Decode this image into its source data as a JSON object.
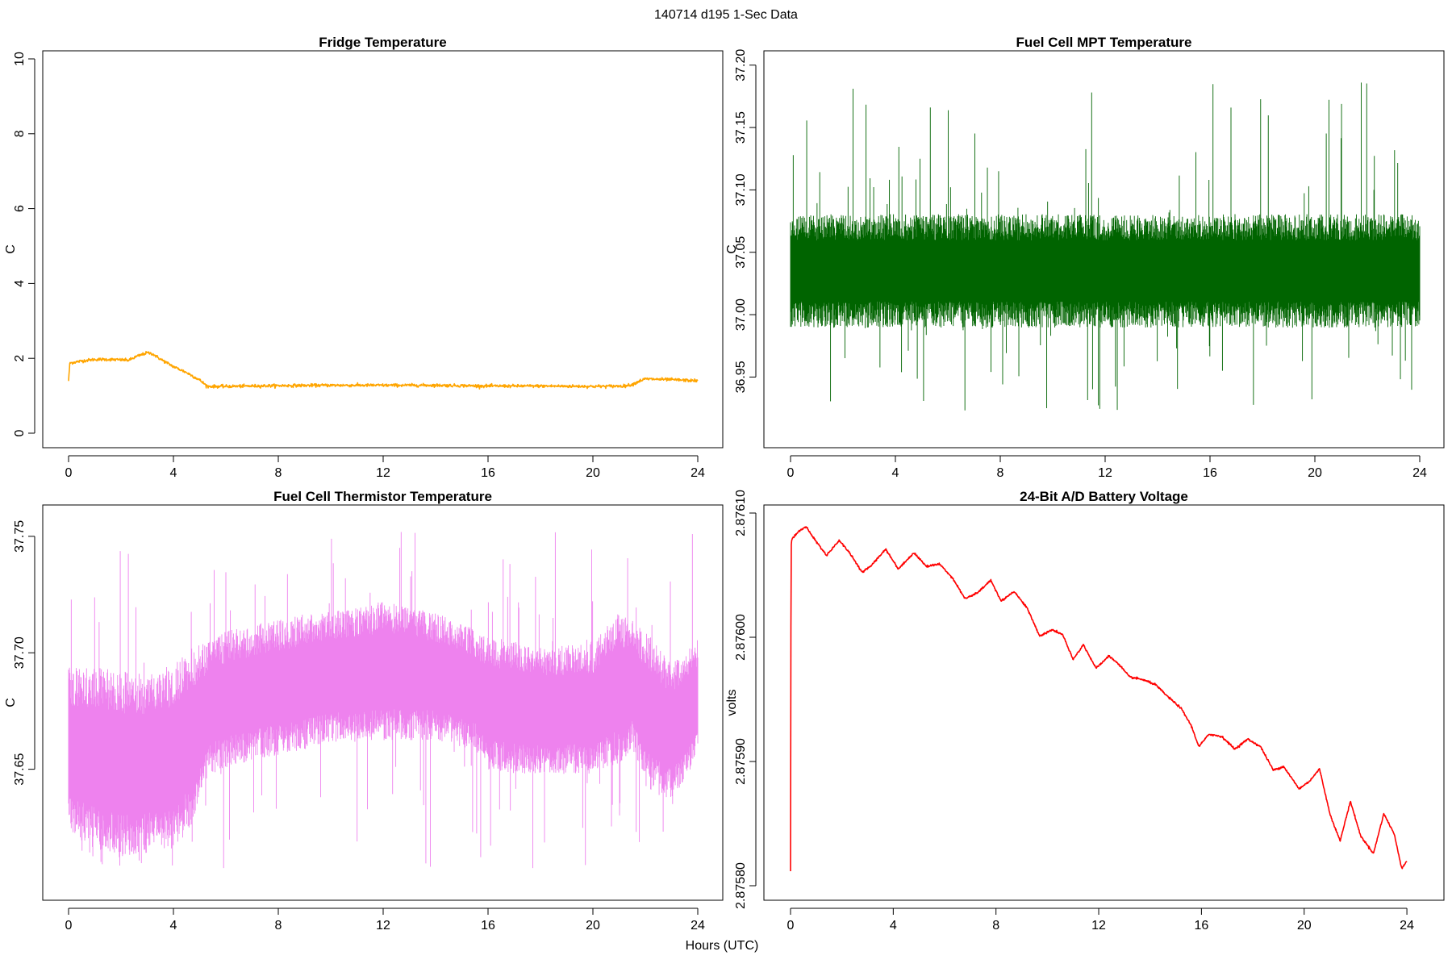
{
  "page": {
    "title": "140714   d195   1-Sec Data",
    "xlabel": "Hours (UTC)"
  },
  "chart_data": [
    {
      "type": "line",
      "title": "Fridge Temperature",
      "xlabel": "",
      "ylabel": "C",
      "xlim": [
        0,
        24
      ],
      "ylim": [
        0,
        10
      ],
      "xticks": [
        0,
        4,
        8,
        12,
        16,
        20,
        24
      ],
      "yticks": [
        0,
        2,
        4,
        6,
        8,
        10
      ],
      "ytick_labels": [
        "0",
        "2",
        "4",
        "6",
        "8",
        "10"
      ],
      "color": "#FFA500",
      "noise": 0.02,
      "series": [
        {
          "x": [
            0,
            0.05,
            0.1,
            0.5,
            1.0,
            1.5,
            2.0,
            2.3,
            2.6,
            3.0,
            3.2,
            3.5,
            4.0,
            4.5,
            5.0,
            5.3,
            6,
            8,
            10,
            12,
            14,
            16,
            18,
            20,
            21.2,
            21.5,
            21.8,
            22.0,
            22.5,
            23,
            24
          ],
          "y": [
            1.4,
            1.88,
            1.88,
            1.93,
            1.97,
            1.97,
            1.96,
            1.95,
            2.05,
            2.15,
            2.12,
            1.98,
            1.78,
            1.62,
            1.42,
            1.25,
            1.25,
            1.27,
            1.28,
            1.28,
            1.28,
            1.26,
            1.26,
            1.25,
            1.26,
            1.3,
            1.4,
            1.45,
            1.44,
            1.43,
            1.4
          ]
        }
      ]
    },
    {
      "type": "line",
      "title": "Fuel Cell MPT Temperature",
      "xlabel": "",
      "ylabel": "C",
      "xlim": [
        0,
        24
      ],
      "ylim": [
        36.905,
        37.205
      ],
      "xticks": [
        0,
        4,
        8,
        12,
        16,
        20,
        24
      ],
      "yticks": [
        36.95,
        37.0,
        37.05,
        37.1,
        37.15,
        37.2
      ],
      "ytick_labels": [
        "36.95",
        "37.00",
        "37.05",
        "37.10",
        "37.15",
        "37.20"
      ],
      "color": "#006400",
      "band": {
        "x": [
          0,
          24
        ],
        "center": [
          37.035,
          37.035
        ],
        "low": [
          37.0,
          37.0
        ],
        "high": [
          37.07,
          37.07
        ],
        "spike_max": 37.19,
        "spike_min": 36.92
      },
      "series": []
    },
    {
      "type": "line",
      "title": "Fuel Cell Thermistor Temperature",
      "xlabel": "",
      "ylabel": "C",
      "xlim": [
        0,
        24
      ],
      "ylim": [
        37.6,
        37.76
      ],
      "xticks": [
        0,
        4,
        8,
        12,
        16,
        20,
        24
      ],
      "yticks": [
        37.65,
        37.7,
        37.75
      ],
      "ytick_labels": [
        "37.65",
        "37.70",
        "37.75"
      ],
      "color": "#EE82EE",
      "band": {
        "x": [
          0,
          1,
          2,
          3,
          4,
          4.8,
          5.3,
          6,
          8,
          10,
          12,
          14,
          15.5,
          16,
          18,
          20,
          21,
          21.5,
          22,
          23,
          24
        ],
        "center": [
          37.658,
          37.655,
          37.652,
          37.652,
          37.656,
          37.664,
          37.676,
          37.68,
          37.685,
          37.69,
          37.692,
          37.69,
          37.684,
          37.678,
          37.675,
          37.676,
          37.685,
          37.686,
          37.676,
          37.666,
          37.68
        ],
        "low": [
          37.63,
          37.625,
          37.62,
          37.62,
          37.625,
          37.635,
          37.655,
          37.66,
          37.665,
          37.67,
          37.672,
          37.67,
          37.665,
          37.655,
          37.655,
          37.655,
          37.66,
          37.665,
          37.65,
          37.645,
          37.66
        ],
        "high": [
          37.685,
          37.685,
          37.682,
          37.68,
          37.685,
          37.695,
          37.7,
          37.705,
          37.71,
          37.715,
          37.718,
          37.712,
          37.705,
          37.7,
          37.697,
          37.698,
          37.71,
          37.708,
          37.702,
          37.69,
          37.7
        ],
        "spike_max": 37.752,
        "spike_min": 37.607
      },
      "series": []
    },
    {
      "type": "line",
      "title": "24-Bit A/D Battery Voltage",
      "xlabel": "",
      "ylabel": "volts",
      "xlim": [
        0,
        24.5
      ],
      "ylim": [
        2.8758,
        2.8761
      ],
      "xticks": [
        0,
        4,
        8,
        12,
        16,
        20,
        24
      ],
      "yticks": [
        2.8758,
        2.8759,
        2.876,
        2.8761
      ],
      "ytick_labels": [
        "2.87580",
        "2.87590",
        "2.87600",
        "2.87610"
      ],
      "color": "#FF0000",
      "noise": 4e-07,
      "series": [
        {
          "x": [
            0,
            0.02,
            0.05,
            0.3,
            0.6,
            1.0,
            1.4,
            1.9,
            2.3,
            2.8,
            3.2,
            3.7,
            4.2,
            4.8,
            5.3,
            5.8,
            6.3,
            6.8,
            7.3,
            7.8,
            8.2,
            8.7,
            9.2,
            9.7,
            10.2,
            10.6,
            11.0,
            11.4,
            11.9,
            12.4,
            12.8,
            13.2,
            13.7,
            14.2,
            14.7,
            15.2,
            15.6,
            15.9,
            16.3,
            16.8,
            17.3,
            17.8,
            18.3,
            18.8,
            19.2,
            19.8,
            20.2,
            20.6,
            21.0,
            21.4,
            21.8,
            22.2,
            22.7,
            23.1,
            23.5,
            23.8,
            24.0
          ],
          "y": [
            2.875812,
            2.876074,
            2.876079,
            2.876085,
            2.876089,
            2.876077,
            2.876066,
            2.876078,
            2.876068,
            2.876052,
            2.876059,
            2.876071,
            2.876055,
            2.876068,
            2.876057,
            2.876059,
            2.876048,
            2.876031,
            2.876036,
            2.876046,
            2.876029,
            2.876037,
            2.876024,
            2.876001,
            2.876006,
            2.876002,
            2.875982,
            2.875994,
            2.875975,
            2.875985,
            2.875978,
            2.875968,
            2.875966,
            2.875962,
            2.875952,
            2.875943,
            2.875929,
            2.875912,
            2.875922,
            2.87592,
            2.87591,
            2.875918,
            2.875912,
            2.875893,
            2.875896,
            2.875878,
            2.875884,
            2.875894,
            2.875858,
            2.875836,
            2.875868,
            2.87584,
            2.875826,
            2.875858,
            2.875842,
            2.875814,
            2.87582
          ]
        }
      ]
    }
  ]
}
